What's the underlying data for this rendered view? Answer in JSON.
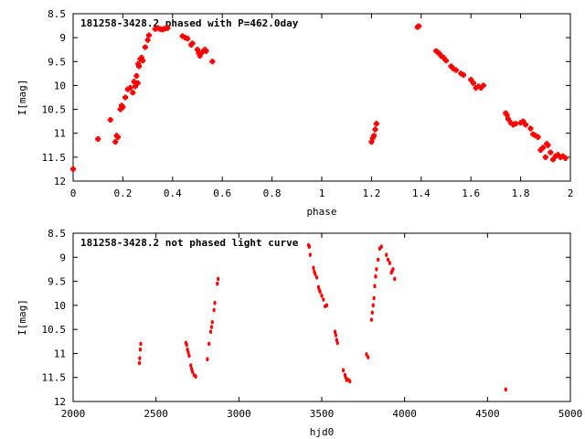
{
  "colors": {
    "points": "#ff0000",
    "axes": "#000000",
    "background": "#ffffff"
  },
  "chart_data": [
    {
      "type": "scatter",
      "title": "181258-3428.2 phased with P=462.0day",
      "xlabel": "phase",
      "ylabel": "I[mag]",
      "xlim": [
        0,
        2
      ],
      "ylim": [
        12,
        8.5
      ],
      "y_inverted": true,
      "grid": false,
      "xticks": [
        0,
        0.2,
        0.4,
        0.6,
        0.8,
        1,
        1.2,
        1.4,
        1.6,
        1.8,
        2
      ],
      "xtick_labels": [
        "0",
        "0.2",
        "0.4",
        "0.6",
        "0.8",
        "1",
        "1.2",
        "1.4",
        "1.6",
        "1.8",
        "2"
      ],
      "yticks": [
        8.5,
        9,
        9.5,
        10,
        10.5,
        11,
        11.5,
        12
      ],
      "ytick_labels": [
        "8.5",
        "9",
        "9.5",
        "10",
        "10.5",
        "11",
        "11.5",
        "12"
      ],
      "series": [
        {
          "marker": "cross",
          "points": [
            [
              0.0,
              11.75
            ],
            [
              0.1,
              11.12
            ],
            [
              0.15,
              10.72
            ],
            [
              0.17,
              11.18
            ],
            [
              0.175,
              11.05
            ],
            [
              0.18,
              11.08
            ],
            [
              0.19,
              10.5
            ],
            [
              0.195,
              10.42
            ],
            [
              0.2,
              10.45
            ],
            [
              0.21,
              10.25
            ],
            [
              0.22,
              10.08
            ],
            [
              0.23,
              10.05
            ],
            [
              0.24,
              10.15
            ],
            [
              0.245,
              9.92
            ],
            [
              0.25,
              10.02
            ],
            [
              0.255,
              9.8
            ],
            [
              0.26,
              9.95
            ],
            [
              0.262,
              9.55
            ],
            [
              0.265,
              9.6
            ],
            [
              0.27,
              9.45
            ],
            [
              0.275,
              9.42
            ],
            [
              0.28,
              9.48
            ],
            [
              0.29,
              9.2
            ],
            [
              0.3,
              9.05
            ],
            [
              0.305,
              8.95
            ],
            [
              0.33,
              8.82
            ],
            [
              0.34,
              8.8
            ],
            [
              0.35,
              8.82
            ],
            [
              0.36,
              8.83
            ],
            [
              0.37,
              8.81
            ],
            [
              0.38,
              8.8
            ],
            [
              0.44,
              8.97
            ],
            [
              0.45,
              9.0
            ],
            [
              0.46,
              9.02
            ],
            [
              0.475,
              9.15
            ],
            [
              0.48,
              9.12
            ],
            [
              0.5,
              9.25
            ],
            [
              0.505,
              9.32
            ],
            [
              0.51,
              9.38
            ],
            [
              0.52,
              9.3
            ],
            [
              0.53,
              9.25
            ],
            [
              0.535,
              9.28
            ],
            [
              0.56,
              9.5
            ],
            [
              1.2,
              11.18
            ],
            [
              1.205,
              11.1
            ],
            [
              1.21,
              11.05
            ],
            [
              1.215,
              10.92
            ],
            [
              1.22,
              10.8
            ],
            [
              1.385,
              8.78
            ],
            [
              1.39,
              8.76
            ],
            [
              1.46,
              9.28
            ],
            [
              1.47,
              9.32
            ],
            [
              1.48,
              9.38
            ],
            [
              1.49,
              9.42
            ],
            [
              1.5,
              9.48
            ],
            [
              1.52,
              9.6
            ],
            [
              1.53,
              9.65
            ],
            [
              1.54,
              9.68
            ],
            [
              1.56,
              9.75
            ],
            [
              1.57,
              9.78
            ],
            [
              1.6,
              9.88
            ],
            [
              1.61,
              9.95
            ],
            [
              1.62,
              10.05
            ],
            [
              1.63,
              10.02
            ],
            [
              1.64,
              10.05
            ],
            [
              1.65,
              10.0
            ],
            [
              1.74,
              10.58
            ],
            [
              1.745,
              10.62
            ],
            [
              1.75,
              10.7
            ],
            [
              1.76,
              10.78
            ],
            [
              1.77,
              10.82
            ],
            [
              1.78,
              10.8
            ],
            [
              1.8,
              10.78
            ],
            [
              1.81,
              10.75
            ],
            [
              1.82,
              10.82
            ],
            [
              1.84,
              10.9
            ],
            [
              1.85,
              11.02
            ],
            [
              1.86,
              11.05
            ],
            [
              1.87,
              11.08
            ],
            [
              1.88,
              11.35
            ],
            [
              1.89,
              11.3
            ],
            [
              1.9,
              11.5
            ],
            [
              1.905,
              11.22
            ],
            [
              1.91,
              11.25
            ],
            [
              1.92,
              11.4
            ],
            [
              1.93,
              11.55
            ],
            [
              1.94,
              11.48
            ],
            [
              1.95,
              11.45
            ],
            [
              1.96,
              11.5
            ],
            [
              1.97,
              11.48
            ],
            [
              1.98,
              11.52
            ]
          ]
        }
      ]
    },
    {
      "type": "scatter",
      "title": "181258-3428.2 not phased light curve",
      "xlabel": "hjd0",
      "ylabel": "I[mag]",
      "xlim": [
        2000,
        5000
      ],
      "ylim": [
        12,
        8.5
      ],
      "y_inverted": true,
      "grid": false,
      "xticks": [
        2000,
        2500,
        3000,
        3500,
        4000,
        4500,
        5000
      ],
      "xtick_labels": [
        "2000",
        "2500",
        "3000",
        "3500",
        "4000",
        "4500",
        "5000"
      ],
      "yticks": [
        8.5,
        9,
        9.5,
        10,
        10.5,
        11,
        11.5,
        12
      ],
      "ytick_labels": [
        "8.5",
        "9",
        "9.5",
        "10",
        "10.5",
        "11",
        "11.5",
        "12"
      ],
      "series": [
        {
          "marker": "dot",
          "points": [
            [
              2400,
              11.2
            ],
            [
              2402,
              11.1
            ],
            [
              2405,
              10.92
            ],
            [
              2408,
              10.8
            ],
            [
              2680,
              10.78
            ],
            [
              2685,
              10.82
            ],
            [
              2690,
              10.92
            ],
            [
              2695,
              10.98
            ],
            [
              2700,
              11.05
            ],
            [
              2710,
              11.25
            ],
            [
              2715,
              11.32
            ],
            [
              2720,
              11.38
            ],
            [
              2730,
              11.45
            ],
            [
              2740,
              11.48
            ],
            [
              2810,
              11.12
            ],
            [
              2820,
              10.8
            ],
            [
              2830,
              10.55
            ],
            [
              2835,
              10.45
            ],
            [
              2840,
              10.35
            ],
            [
              2850,
              10.1
            ],
            [
              2855,
              9.95
            ],
            [
              2870,
              9.55
            ],
            [
              2875,
              9.45
            ],
            [
              3420,
              8.75
            ],
            [
              3425,
              8.78
            ],
            [
              3430,
              8.95
            ],
            [
              3450,
              9.22
            ],
            [
              3455,
              9.3
            ],
            [
              3460,
              9.35
            ],
            [
              3470,
              9.42
            ],
            [
              3480,
              9.62
            ],
            [
              3485,
              9.68
            ],
            [
              3490,
              9.72
            ],
            [
              3500,
              9.8
            ],
            [
              3510,
              9.88
            ],
            [
              3520,
              10.02
            ],
            [
              3530,
              10.0
            ],
            [
              3580,
              10.55
            ],
            [
              3585,
              10.62
            ],
            [
              3590,
              10.72
            ],
            [
              3595,
              10.78
            ],
            [
              3630,
              11.35
            ],
            [
              3640,
              11.45
            ],
            [
              3645,
              11.5
            ],
            [
              3650,
              11.55
            ],
            [
              3660,
              11.55
            ],
            [
              3670,
              11.58
            ],
            [
              3770,
              11.02
            ],
            [
              3780,
              11.08
            ],
            [
              3800,
              10.3
            ],
            [
              3805,
              10.15
            ],
            [
              3810,
              10.0
            ],
            [
              3815,
              9.85
            ],
            [
              3820,
              9.6
            ],
            [
              3825,
              9.4
            ],
            [
              3830,
              9.25
            ],
            [
              3840,
              9.05
            ],
            [
              3850,
              8.82
            ],
            [
              3860,
              8.78
            ],
            [
              3890,
              8.95
            ],
            [
              3900,
              9.05
            ],
            [
              3910,
              9.12
            ],
            [
              3920,
              9.32
            ],
            [
              3925,
              9.28
            ],
            [
              3930,
              9.25
            ],
            [
              3940,
              9.45
            ],
            [
              4610,
              11.75
            ]
          ]
        }
      ]
    }
  ]
}
